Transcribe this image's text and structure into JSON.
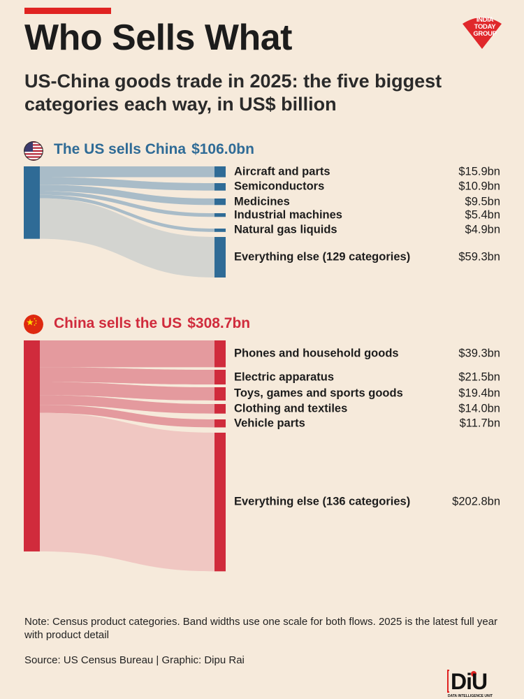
{
  "title": "Who Sells What",
  "subtitle": "US-China goods trade in 2025: the five biggest categories each way, in US$ billion",
  "logo": {
    "text": "INDIA TODAY GROUP"
  },
  "colors": {
    "us": "#2f6b96",
    "us_band": "#a9bcc8",
    "us_other_band": "#d3d4d0",
    "cn": "#d02b3c",
    "cn_band": "#e49a9e",
    "cn_other_band": "#f0c7c2",
    "accent": "#e02321"
  },
  "chart_data": [
    {
      "type": "sankey",
      "title": "The US sells China",
      "total_label": "$106.0bn",
      "total": 106.0,
      "flows": [
        {
          "label": "Aircraft and parts",
          "value": 15.9,
          "value_label": "$15.9bn"
        },
        {
          "label": "Semiconductors",
          "value": 10.9,
          "value_label": "$10.9bn"
        },
        {
          "label": "Medicines",
          "value": 9.5,
          "value_label": "$9.5bn"
        },
        {
          "label": "Industrial machines",
          "value": 5.4,
          "value_label": "$5.4bn"
        },
        {
          "label": "Natural gas liquids",
          "value": 4.9,
          "value_label": "$4.9bn"
        },
        {
          "label": "Everything else (129 categories)",
          "value": 59.3,
          "value_label": "$59.3bn"
        }
      ]
    },
    {
      "type": "sankey",
      "title": "China sells the US",
      "total_label": "$308.7bn",
      "total": 308.7,
      "flows": [
        {
          "label": "Phones and household goods",
          "value": 39.3,
          "value_label": "$39.3bn"
        },
        {
          "label": "Electric apparatus",
          "value": 21.5,
          "value_label": "$21.5bn"
        },
        {
          "label": "Toys, games and sports goods",
          "value": 19.4,
          "value_label": "$19.4bn"
        },
        {
          "label": "Clothing and textiles",
          "value": 14.0,
          "value_label": "$14.0bn"
        },
        {
          "label": "Vehicle parts",
          "value": 11.7,
          "value_label": "$11.7bn"
        },
        {
          "label": "Everything else (136 categories)",
          "value": 202.8,
          "value_label": "$202.8bn"
        }
      ]
    }
  ],
  "note": "Note: Census product categories. Band widths use one scale for both flows. 2025 is the latest full year with product detail",
  "source": "Source: US Census Bureau | Graphic: Dipu Rai",
  "brand": {
    "name": "DiU",
    "tagline": "DATA INTELLIGENCE UNIT"
  }
}
